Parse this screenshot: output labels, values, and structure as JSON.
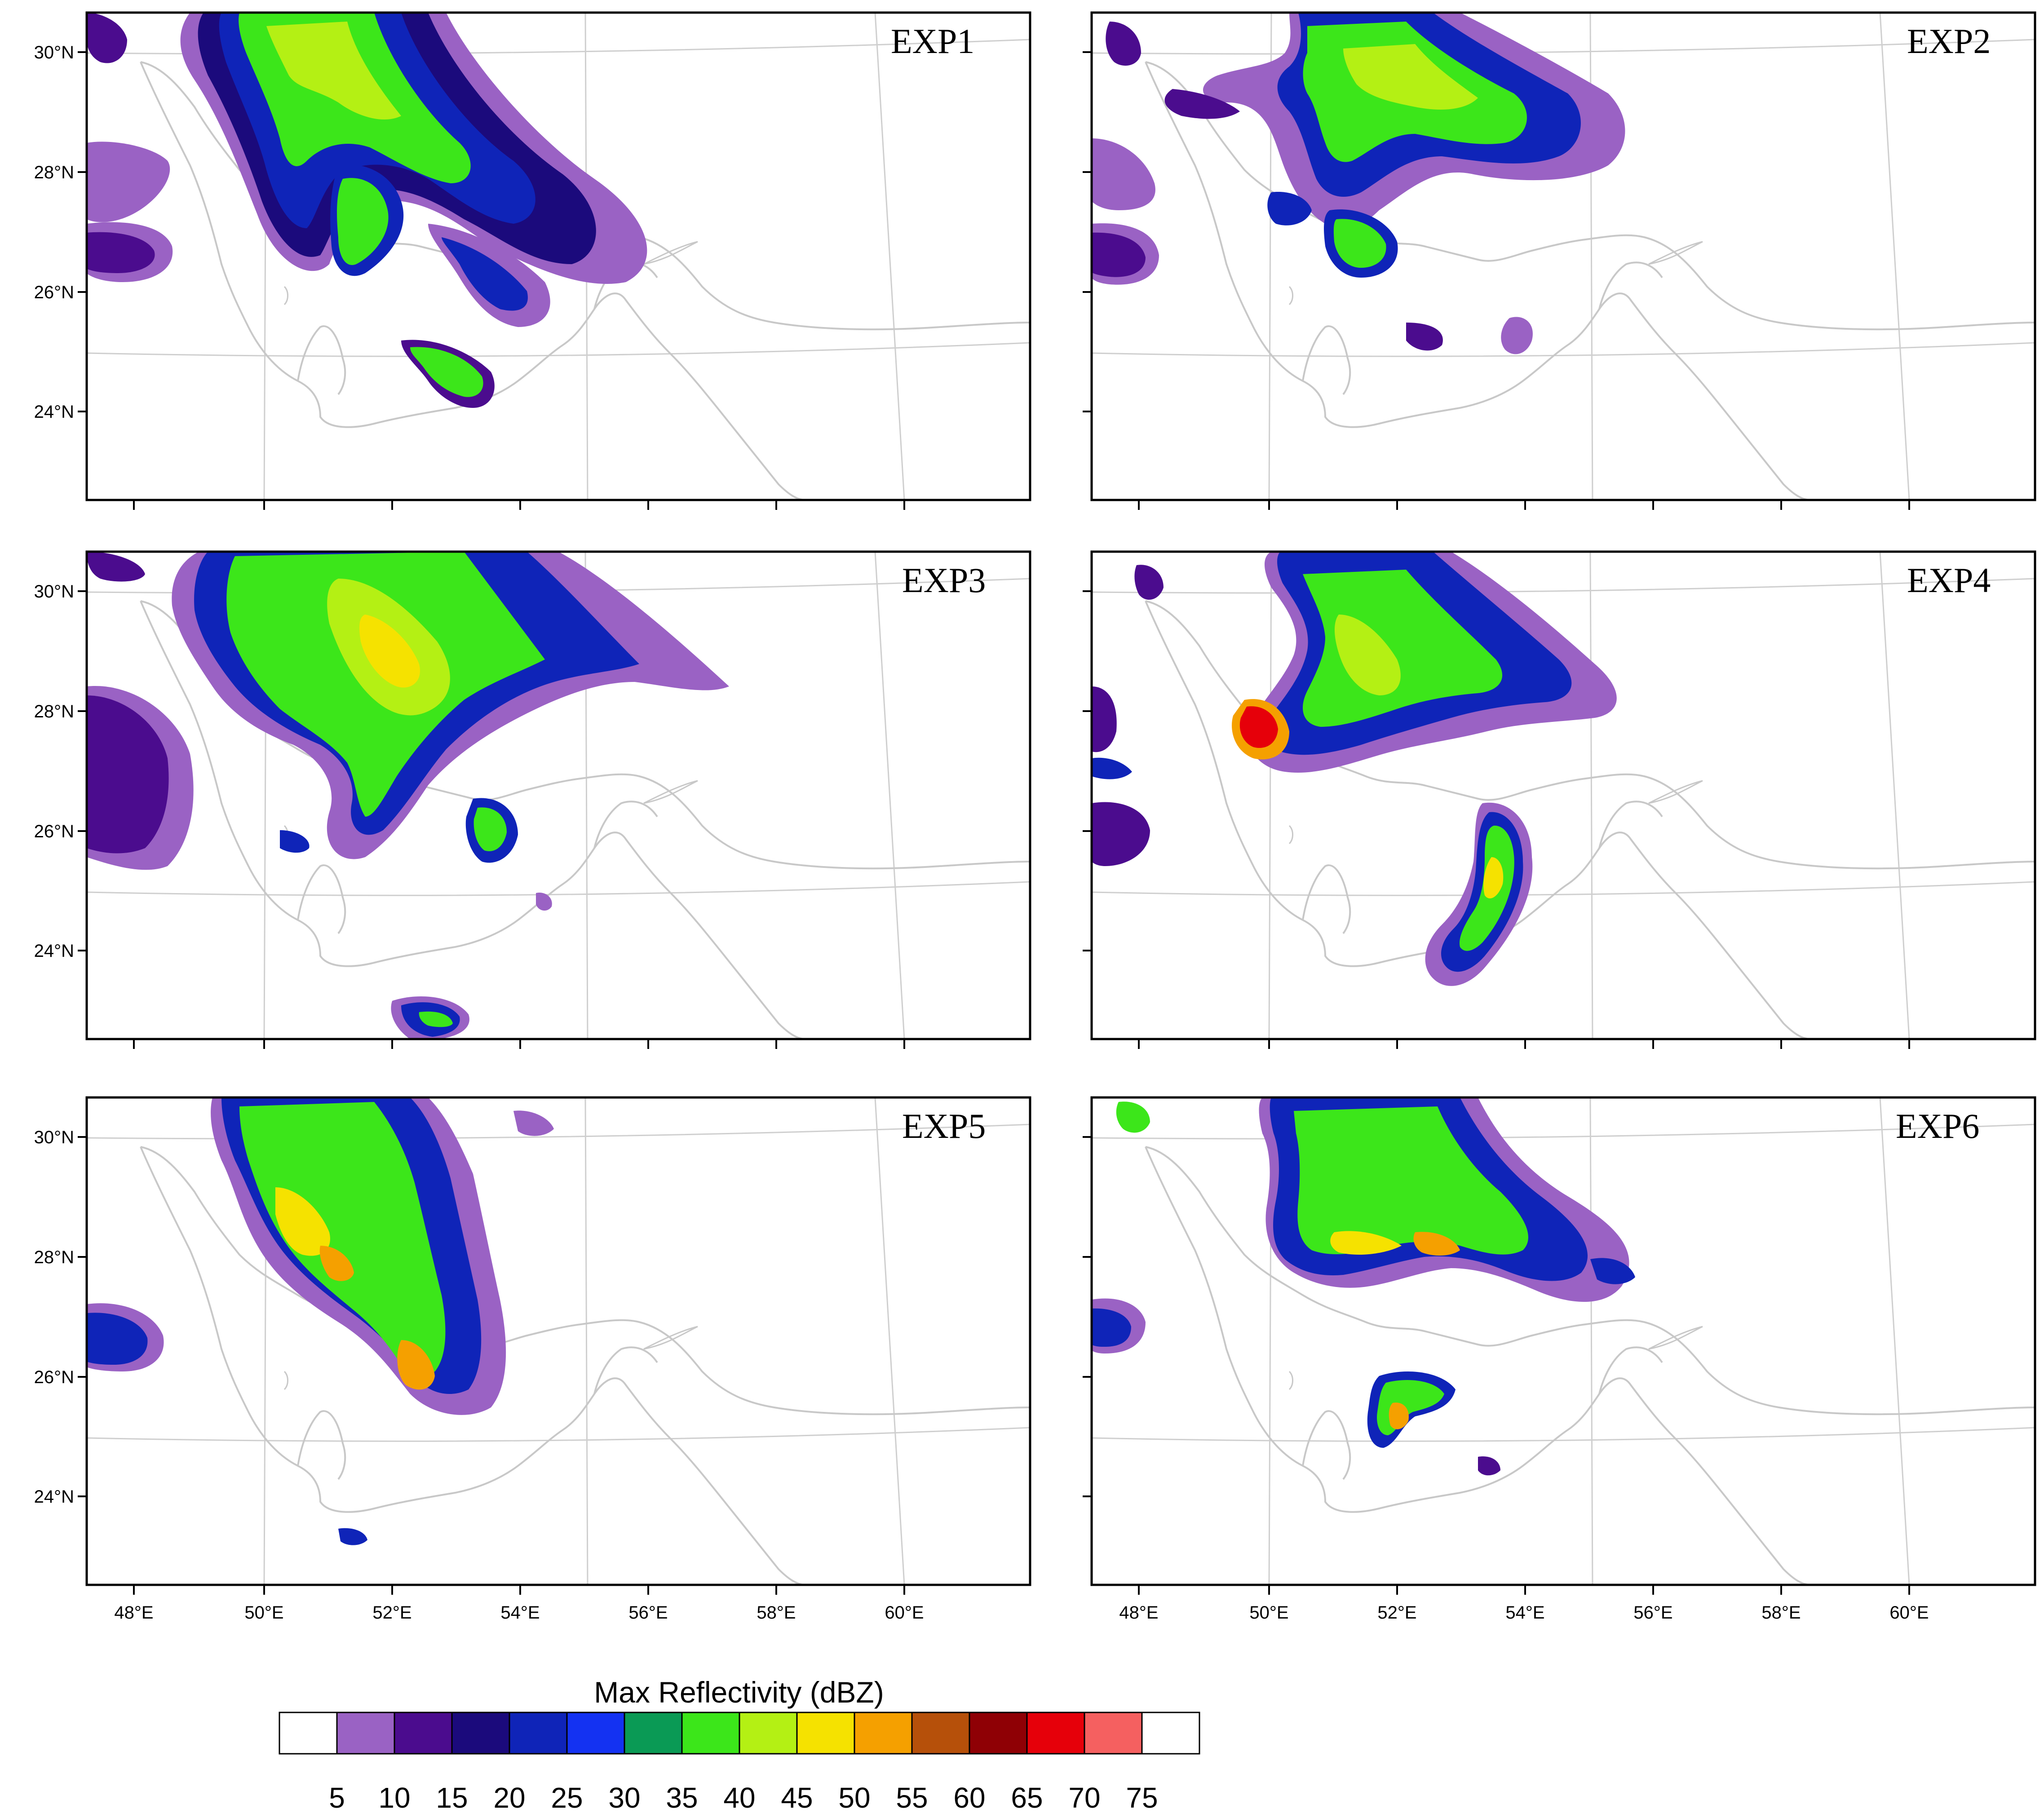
{
  "panels": [
    {
      "label": "EXP1"
    },
    {
      "label": "EXP2"
    },
    {
      "label": "EXP3"
    },
    {
      "label": "EXP4"
    },
    {
      "label": "EXP5"
    },
    {
      "label": "EXP6"
    }
  ],
  "axes": {
    "lat_ticks": [
      "30°N",
      "28°N",
      "26°N",
      "24°N"
    ],
    "lon_ticks": [
      "48°E",
      "50°E",
      "52°E",
      "54°E",
      "56°E",
      "58°E",
      "60°E"
    ]
  },
  "colorbar": {
    "title": "Max Reflectivity  (dBZ)",
    "ticks": [
      "5",
      "10",
      "15",
      "20",
      "25",
      "30",
      "35",
      "40",
      "45",
      "50",
      "55",
      "60",
      "65",
      "70",
      "75"
    ],
    "colors": [
      "#ffffff",
      "#9a62c4",
      "#4b0c8e",
      "#1b0a7c",
      "#0f24b8",
      "#1432f2",
      "#0a9a55",
      "#3ce61a",
      "#b4f014",
      "#f5e200",
      "#f5a000",
      "#b6500a",
      "#8f0005",
      "#e6000a",
      "#f56060",
      "#ffffff"
    ]
  },
  "style": {
    "coast_color": "#c8c8c8",
    "frame_color": "#000000"
  }
}
